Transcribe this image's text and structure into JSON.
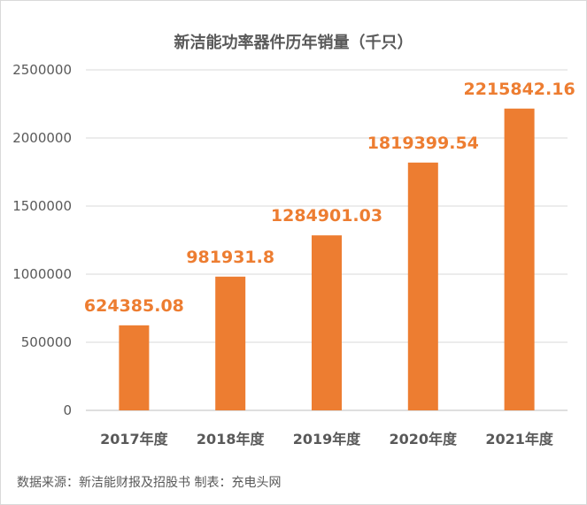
{
  "chart_data": {
    "type": "bar",
    "title": "新洁能功率器件历年销量（千只）",
    "categories": [
      "2017年度",
      "2018年度",
      "2019年度",
      "2020年度",
      "2021年度"
    ],
    "values": [
      624385.08,
      981931.8,
      1284901.03,
      1819399.54,
      2215842.16
    ],
    "value_labels": [
      "624385.08",
      "981931.8",
      "1284901.03",
      "1819399.54",
      "2215842.16"
    ],
    "y_ticks": [
      "0",
      "500000",
      "1000000",
      "1500000",
      "2000000",
      "2500000"
    ],
    "ylim": [
      0,
      2500000
    ],
    "xlabel": "",
    "ylabel": "",
    "grid": true,
    "legend": "none",
    "bar_color": "#ED7D31",
    "label_color": "#ED7D31",
    "grid_color": "#d9d9d9",
    "text_color": "#595959"
  },
  "footer": {
    "source": "数据来源：新洁能财报及招股书   制表：充电头网"
  }
}
